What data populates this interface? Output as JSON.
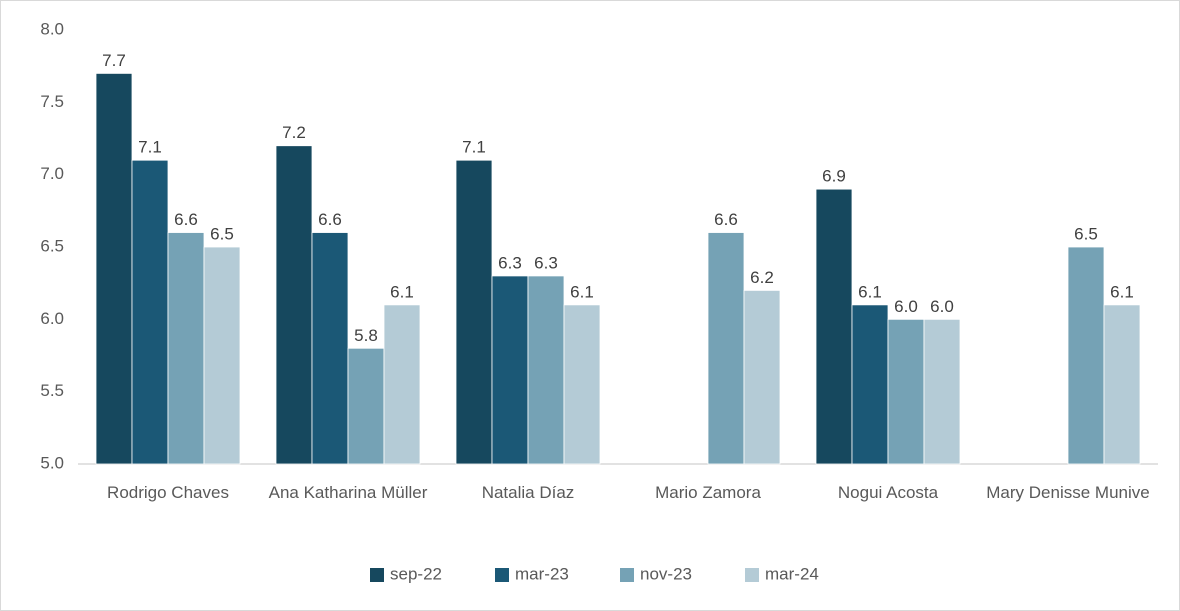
{
  "chart_data": {
    "type": "bar",
    "categories": [
      "Rodrigo Chaves",
      "Ana Katharina Müller",
      "Natalia Díaz",
      "Mario Zamora",
      "Nogui Acosta",
      "Mary Denisse Munive"
    ],
    "series": [
      {
        "name": "sep-22",
        "color": "#16485e",
        "values": [
          7.7,
          7.2,
          7.1,
          null,
          6.9,
          null
        ],
        "value_labels": [
          "7.7",
          "7.2",
          "7.1",
          null,
          "6.9",
          null
        ]
      },
      {
        "name": "mar-23",
        "color": "#1b5876",
        "values": [
          7.1,
          6.6,
          6.3,
          null,
          6.1,
          null
        ],
        "value_labels": [
          "7.1",
          "6.6",
          "6.3",
          null,
          "6.1",
          null
        ]
      },
      {
        "name": "nov-23",
        "color": "#75a2b5",
        "values": [
          6.6,
          5.8,
          6.3,
          6.6,
          6.0,
          6.5
        ],
        "value_labels": [
          "6.6",
          "5.8",
          "6.3",
          "6.6",
          "6.0",
          "6.5"
        ]
      },
      {
        "name": "mar-24",
        "color": "#b4cbd6",
        "values": [
          6.5,
          6.1,
          6.1,
          6.2,
          6.0,
          6.1
        ],
        "value_labels": [
          "6.5",
          "6.1",
          "6.1",
          "6.2",
          "6.0",
          "6.1"
        ]
      }
    ],
    "ylim": [
      5,
      8
    ],
    "yticks": [
      {
        "value": 5,
        "label": "5.0"
      },
      5.5,
      {
        "value": 6,
        "label": "6.0"
      },
      6.5,
      {
        "value": 7,
        "label": "7.0"
      },
      7.5,
      {
        "value": 8,
        "label": "8.0"
      }
    ],
    "grid": false,
    "legend": "bottom"
  }
}
